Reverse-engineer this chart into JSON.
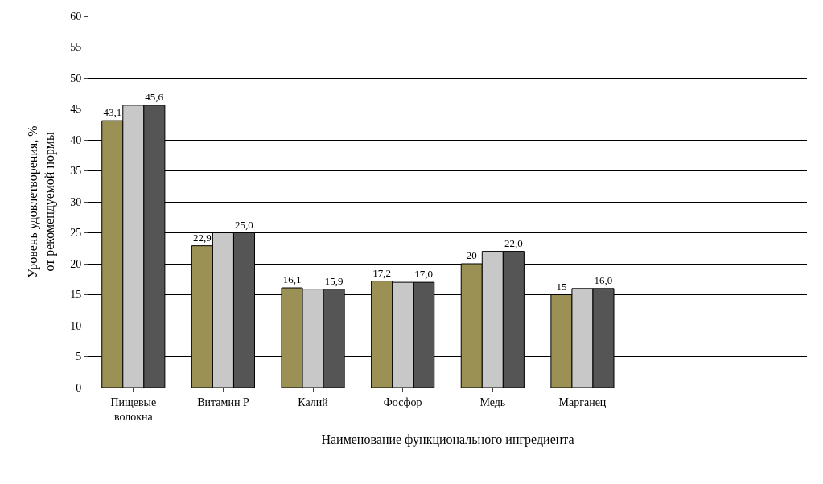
{
  "chart_data": {
    "type": "bar",
    "xlabel": "Наименование функционального ингредиента",
    "ylabel": "Уровень удовлетворения, %\nот рекомендуемой нормы",
    "categories": [
      "Пищевые волокна",
      "Витамин Р",
      "Калий",
      "Фосфор",
      "Медь",
      "Марганец",
      null,
      null
    ],
    "series": [
      {
        "color": "#9c9155",
        "values": [
          43.1,
          22.9,
          16.1,
          17.2,
          20,
          15,
          null,
          null
        ],
        "value_labels": [
          "43,1",
          "22,9",
          "16,1",
          "17,2",
          "20",
          "15",
          null,
          null
        ]
      },
      {
        "color": "#c8c8c8",
        "values": [
          45.6,
          25.0,
          15.9,
          17.0,
          22.0,
          16.0,
          null,
          null
        ]
      },
      {
        "color": "#555555",
        "values": [
          45.6,
          25.0,
          15.9,
          17.0,
          22.0,
          16.0,
          null,
          null
        ],
        "value_labels": [
          "45,6",
          "25,0",
          "15,9",
          "17,0",
          "22,0",
          "16,0",
          null,
          null
        ]
      }
    ],
    "ylim": [
      0,
      60
    ],
    "yticks": [
      0,
      5,
      10,
      15,
      20,
      25,
      30,
      35,
      40,
      45,
      50,
      55,
      60
    ],
    "grid": "y"
  }
}
